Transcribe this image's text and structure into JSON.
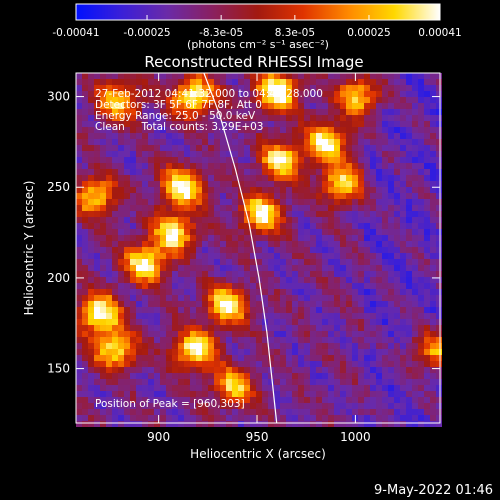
{
  "colorbar": {
    "tick_labels": [
      "-0.00041",
      "-0.00025",
      "-8.3e-05",
      "8.3e-05",
      "0.00025",
      "0.00041"
    ],
    "tick_values": [
      -0.00041,
      -0.00025,
      -8.3e-05,
      8.3e-05,
      0.00025,
      0.00041
    ],
    "range": [
      -0.00041,
      0.00041
    ],
    "units_label": "(photons cm⁻² s⁻¹ asec⁻²)",
    "colormap": [
      "#0010ff",
      "#3a1fd8",
      "#6a2aa8",
      "#8a2060",
      "#a31a10",
      "#e03400",
      "#ff8a00",
      "#ffd800",
      "#ffffff"
    ]
  },
  "chart_data": {
    "type": "heatmap",
    "title": "Reconstructed RHESSI Image",
    "xlabel": "Heliocentric X (arcsec)",
    "ylabel": "Heliocentric Y (arcsec)",
    "xlim": [
      858,
      1043
    ],
    "ylim": [
      120,
      313
    ],
    "x_ticks": [
      900,
      950,
      1000
    ],
    "y_ticks": [
      150,
      200,
      250,
      300
    ],
    "x_tick_labels": [
      "900",
      "950",
      "1000"
    ],
    "y_tick_labels": [
      "150",
      "200",
      "250",
      "300"
    ],
    "info_lines": [
      "27-Feb-2012 04:41:32.000 to 04:43:28.000",
      "Detectors: 3F 5F 6F 7F 8F, Att 0",
      "Energy Range: 25.0 - 50.0 keV",
      "Clean     Total counts: 3.29E+03"
    ],
    "peak_label": "Position of Peak = [960,303]",
    "peak_position": [
      960,
      303
    ],
    "limb_curve": [
      [
        923,
        313
      ],
      [
        931,
        290
      ],
      [
        939,
        260
      ],
      [
        946,
        230
      ],
      [
        951,
        200
      ],
      [
        955,
        170
      ],
      [
        958,
        140
      ],
      [
        960,
        120
      ]
    ],
    "bright_regions": [
      {
        "x": 912,
        "y": 250,
        "level": 0.95
      },
      {
        "x": 908,
        "y": 225,
        "level": 0.85
      },
      {
        "x": 893,
        "y": 208,
        "level": 0.9
      },
      {
        "x": 870,
        "y": 180,
        "level": 0.98
      },
      {
        "x": 878,
        "y": 160,
        "level": 0.85
      },
      {
        "x": 918,
        "y": 160,
        "level": 0.95
      },
      {
        "x": 935,
        "y": 185,
        "level": 0.9
      },
      {
        "x": 952,
        "y": 235,
        "level": 0.9
      },
      {
        "x": 962,
        "y": 265,
        "level": 0.85
      },
      {
        "x": 985,
        "y": 275,
        "level": 0.9
      },
      {
        "x": 993,
        "y": 252,
        "level": 0.8
      },
      {
        "x": 918,
        "y": 300,
        "level": 0.95
      },
      {
        "x": 880,
        "y": 298,
        "level": 0.8
      },
      {
        "x": 960,
        "y": 303,
        "level": 1.0
      },
      {
        "x": 1002,
        "y": 300,
        "level": 0.8
      },
      {
        "x": 868,
        "y": 245,
        "level": 0.8
      },
      {
        "x": 938,
        "y": 140,
        "level": 0.75
      },
      {
        "x": 1040,
        "y": 160,
        "level": 0.7
      }
    ]
  },
  "timestamp": "9-May-2022 01:46"
}
